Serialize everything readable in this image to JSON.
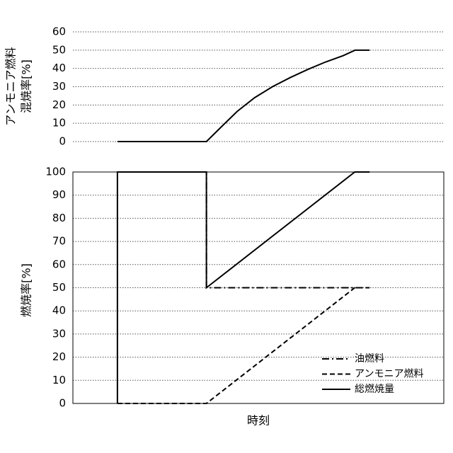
{
  "chart_data": [
    {
      "type": "line",
      "ylabel": [
        "アンモニア燃料",
        "混焼率[%]"
      ],
      "xlim": [
        0,
        100
      ],
      "ylim": [
        0,
        60
      ],
      "yticks": [
        0,
        10,
        20,
        30,
        40,
        50,
        60
      ],
      "grid": true,
      "frame": false,
      "series": [
        {
          "color": "#000000",
          "dash": "solid",
          "x": [
            12,
            36,
            40.5,
            44.3,
            49,
            53.8,
            58.6,
            63.4,
            68.1,
            72.9,
            76.1,
            80
          ],
          "values": [
            0,
            0,
            9,
            16.5,
            24,
            30,
            35,
            39.5,
            43.5,
            47,
            50,
            50
          ]
        }
      ]
    },
    {
      "type": "line",
      "ylabel": [
        "燃焼率[%]"
      ],
      "xlabel": "時刻",
      "xlim": [
        0,
        100
      ],
      "ylim": [
        0,
        100
      ],
      "yticks": [
        0,
        10,
        20,
        30,
        40,
        50,
        60,
        70,
        80,
        90,
        100
      ],
      "grid": true,
      "frame": true,
      "legend": "lower right",
      "series": [
        {
          "name": "油燃料",
          "color": "#000000",
          "dash": "dashdot",
          "x": [
            12,
            36,
            36,
            80
          ],
          "values": [
            100,
            100,
            50,
            50
          ]
        },
        {
          "name": "アンモニア燃料",
          "color": "#000000",
          "dash": "dashed",
          "x": [
            12,
            36,
            76,
            80
          ],
          "values": [
            0,
            0,
            50,
            50
          ]
        },
        {
          "name": "総燃焼量",
          "color": "#000000",
          "dash": "solid",
          "x": [
            12,
            12,
            36,
            36,
            76,
            80
          ],
          "values": [
            0,
            100,
            100,
            50,
            100,
            100
          ]
        }
      ]
    }
  ]
}
